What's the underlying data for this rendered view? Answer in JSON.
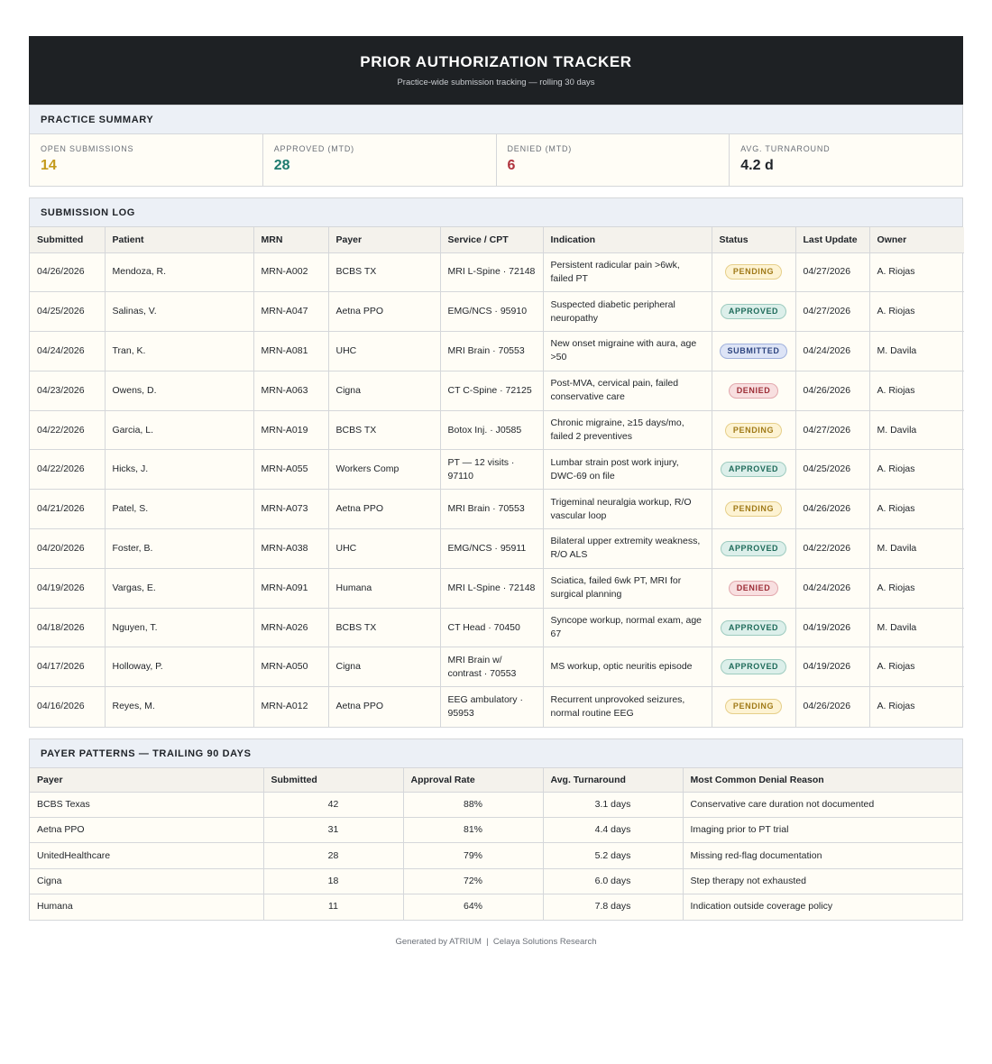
{
  "header": {
    "title": "PRIOR AUTHORIZATION TRACKER",
    "subtitle": "Practice-wide submission tracking — rolling 30 days"
  },
  "summary": {
    "heading": "PRACTICE SUMMARY",
    "kpis": [
      {
        "label": "OPEN SUBMISSIONS",
        "value": "14",
        "color": "#c49a1c"
      },
      {
        "label": "APPROVED (MTD)",
        "value": "28",
        "color": "#1d7a6e"
      },
      {
        "label": "DENIED (MTD)",
        "value": "6",
        "color": "#b0333d"
      },
      {
        "label": "AVG. TURNAROUND",
        "value": "4.2 d",
        "color": "#1f2328"
      }
    ]
  },
  "log": {
    "heading": "SUBMISSION LOG",
    "columns": [
      "Submitted",
      "Patient",
      "MRN",
      "Payer",
      "Service / CPT",
      "Indication",
      "Status",
      "Last Update",
      "Owner"
    ],
    "rows": [
      {
        "submitted": "04/26/2026",
        "patient": "Mendoza, R.",
        "mrn": "MRN-A002",
        "payer": "BCBS TX",
        "service": "MRI L-Spine · 72148",
        "indication": "Persistent radicular pain >6wk, failed PT",
        "status": "PENDING",
        "status_key": "pending",
        "last_update": "04/27/2026",
        "owner": "A. Riojas"
      },
      {
        "submitted": "04/25/2026",
        "patient": "Salinas, V.",
        "mrn": "MRN-A047",
        "payer": "Aetna PPO",
        "service": "EMG/NCS · 95910",
        "indication": "Suspected diabetic peripheral neuropathy",
        "status": "APPROVED",
        "status_key": "approved",
        "last_update": "04/27/2026",
        "owner": "A. Riojas"
      },
      {
        "submitted": "04/24/2026",
        "patient": "Tran, K.",
        "mrn": "MRN-A081",
        "payer": "UHC",
        "service": "MRI Brain · 70553",
        "indication": "New onset migraine with aura, age >50",
        "status": "SUBMITTED",
        "status_key": "submitted",
        "last_update": "04/24/2026",
        "owner": "M. Davila"
      },
      {
        "submitted": "04/23/2026",
        "patient": "Owens, D.",
        "mrn": "MRN-A063",
        "payer": "Cigna",
        "service": "CT C-Spine · 72125",
        "indication": "Post-MVA, cervical pain, failed conservative care",
        "status": "DENIED",
        "status_key": "denied",
        "last_update": "04/26/2026",
        "owner": "A. Riojas"
      },
      {
        "submitted": "04/22/2026",
        "patient": "Garcia, L.",
        "mrn": "MRN-A019",
        "payer": "BCBS TX",
        "service": "Botox Inj. · J0585",
        "indication": "Chronic migraine, ≥15 days/mo, failed 2 preventives",
        "status": "PENDING",
        "status_key": "pending",
        "last_update": "04/27/2026",
        "owner": "M. Davila"
      },
      {
        "submitted": "04/22/2026",
        "patient": "Hicks, J.",
        "mrn": "MRN-A055",
        "payer": "Workers Comp",
        "service": "PT — 12 visits · 97110",
        "indication": "Lumbar strain post work injury, DWC-69 on file",
        "status": "APPROVED",
        "status_key": "approved",
        "last_update": "04/25/2026",
        "owner": "A. Riojas"
      },
      {
        "submitted": "04/21/2026",
        "patient": "Patel, S.",
        "mrn": "MRN-A073",
        "payer": "Aetna PPO",
        "service": "MRI Brain · 70553",
        "indication": "Trigeminal neuralgia workup, R/O vascular loop",
        "status": "PENDING",
        "status_key": "pending",
        "last_update": "04/26/2026",
        "owner": "A. Riojas"
      },
      {
        "submitted": "04/20/2026",
        "patient": "Foster, B.",
        "mrn": "MRN-A038",
        "payer": "UHC",
        "service": "EMG/NCS · 95911",
        "indication": "Bilateral upper extremity weakness, R/O ALS",
        "status": "APPROVED",
        "status_key": "approved",
        "last_update": "04/22/2026",
        "owner": "M. Davila"
      },
      {
        "submitted": "04/19/2026",
        "patient": "Vargas, E.",
        "mrn": "MRN-A091",
        "payer": "Humana",
        "service": "MRI L-Spine · 72148",
        "indication": "Sciatica, failed 6wk PT, MRI for surgical planning",
        "status": "DENIED",
        "status_key": "denied",
        "last_update": "04/24/2026",
        "owner": "A. Riojas"
      },
      {
        "submitted": "04/18/2026",
        "patient": "Nguyen, T.",
        "mrn": "MRN-A026",
        "payer": "BCBS TX",
        "service": "CT Head · 70450",
        "indication": "Syncope workup, normal exam, age 67",
        "status": "APPROVED",
        "status_key": "approved",
        "last_update": "04/19/2026",
        "owner": "M. Davila"
      },
      {
        "submitted": "04/17/2026",
        "patient": "Holloway, P.",
        "mrn": "MRN-A050",
        "payer": "Cigna",
        "service": "MRI Brain w/ contrast · 70553",
        "indication": "MS workup, optic neuritis episode",
        "status": "APPROVED",
        "status_key": "approved",
        "last_update": "04/19/2026",
        "owner": "A. Riojas"
      },
      {
        "submitted": "04/16/2026",
        "patient": "Reyes, M.",
        "mrn": "MRN-A012",
        "payer": "Aetna PPO",
        "service": "EEG ambulatory · 95953",
        "indication": "Recurrent unprovoked seizures, normal routine EEG",
        "status": "PENDING",
        "status_key": "pending",
        "last_update": "04/26/2026",
        "owner": "A. Riojas"
      }
    ]
  },
  "payer_patterns": {
    "heading": "PAYER PATTERNS — TRAILING 90 DAYS",
    "columns": [
      "Payer",
      "Submitted",
      "Approval Rate",
      "Avg. Turnaround",
      "Most Common Denial Reason"
    ],
    "rows": [
      {
        "payer": "BCBS Texas",
        "submitted": "42",
        "approval_rate": "88%",
        "turnaround": "3.1 days",
        "denial_reason": "Conservative care duration not documented"
      },
      {
        "payer": "Aetna PPO",
        "submitted": "31",
        "approval_rate": "81%",
        "turnaround": "4.4 days",
        "denial_reason": "Imaging prior to PT trial"
      },
      {
        "payer": "UnitedHealthcare",
        "submitted": "28",
        "approval_rate": "79%",
        "turnaround": "5.2 days",
        "denial_reason": "Missing red-flag documentation"
      },
      {
        "payer": "Cigna",
        "submitted": "18",
        "approval_rate": "72%",
        "turnaround": "6.0 days",
        "denial_reason": "Step therapy not exhausted"
      },
      {
        "payer": "Humana",
        "submitted": "11",
        "approval_rate": "64%",
        "turnaround": "7.8 days",
        "denial_reason": "Indication outside coverage policy"
      }
    ]
  },
  "footer": {
    "text": "Generated by ATRIUM  |  Celaya Solutions Research"
  }
}
